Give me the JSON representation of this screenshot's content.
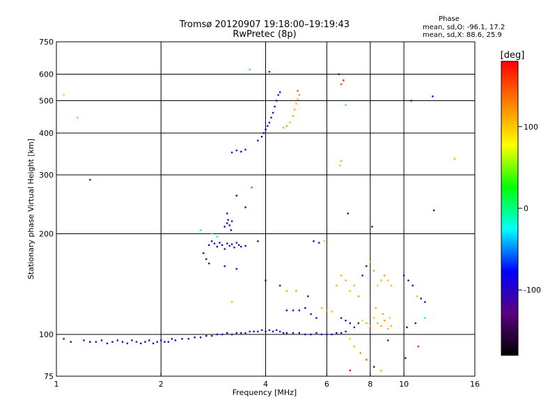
{
  "chart_data": {
    "type": "scatter",
    "title": "Tromsø 20120907 19:18:00–19:19:43",
    "subtitle": "RwPretec (8p)",
    "xlabel": "Frequency [MHz]",
    "ylabel": "Stationary phase Virtual Height [km]",
    "x_scale": "log",
    "y_scale": "log",
    "xlim": [
      1,
      16
    ],
    "ylim": [
      75,
      750
    ],
    "x_ticks": [
      1,
      2,
      4,
      6,
      8,
      10,
      16
    ],
    "x_tick_labels": [
      "1",
      "2",
      "4",
      "6",
      "8",
      "10",
      "16"
    ],
    "y_ticks": [
      75,
      100,
      200,
      300,
      400,
      500,
      600,
      750
    ],
    "y_tick_labels": [
      "75",
      "100",
      "200",
      "300",
      "400",
      "500",
      "600",
      "750"
    ],
    "x_gridlines": [
      2,
      4,
      6,
      8,
      10
    ],
    "y_gridlines": [
      100,
      200,
      300,
      400,
      500,
      600
    ],
    "grid": true,
    "phase_box": {
      "title": "Phase",
      "line1": "mean, sd,O: -96.1, 17.2",
      "line2": "mean, sd,X:  88.6, 25.9"
    },
    "colorbar": {
      "label": "[deg]",
      "ticks": [
        100,
        0,
        -100
      ],
      "tick_labels": [
        "100",
        "0",
        "-100"
      ],
      "range": [
        -180,
        180
      ],
      "colors": [
        "#000000",
        "#5a0080",
        "#0000ff",
        "#00ffff",
        "#00ff00",
        "#ffff00",
        "#ff8000",
        "#ff0000"
      ]
    },
    "series": [
      {
        "name": "",
        "points": [
          [
            1.05,
            97,
            -110
          ],
          [
            1.1,
            95,
            -100
          ],
          [
            1.2,
            96,
            -105
          ],
          [
            1.25,
            95,
            -95
          ],
          [
            1.3,
            95,
            -110
          ],
          [
            1.35,
            96,
            -100
          ],
          [
            1.4,
            94,
            -105
          ],
          [
            1.45,
            95,
            -95
          ],
          [
            1.5,
            96,
            -110
          ],
          [
            1.55,
            95,
            -100
          ],
          [
            1.6,
            94,
            -105
          ],
          [
            1.65,
            96,
            -95
          ],
          [
            1.7,
            95,
            -110
          ],
          [
            1.75,
            94,
            -100
          ],
          [
            1.8,
            95,
            -105
          ],
          [
            1.85,
            96,
            -95
          ],
          [
            1.9,
            94,
            -110
          ],
          [
            1.95,
            95,
            -100
          ],
          [
            2.0,
            96,
            -105
          ],
          [
            2.05,
            95,
            -95
          ],
          [
            2.1,
            95,
            -110
          ],
          [
            2.15,
            97,
            -100
          ],
          [
            2.2,
            96,
            -105
          ],
          [
            2.3,
            97,
            -95
          ],
          [
            2.4,
            97,
            -110
          ],
          [
            2.5,
            98,
            -100
          ],
          [
            2.6,
            98,
            -105
          ],
          [
            2.7,
            99,
            -95
          ],
          [
            2.8,
            99,
            -110
          ],
          [
            2.9,
            100,
            -100
          ],
          [
            3.0,
            100,
            -105
          ],
          [
            3.1,
            101,
            -95
          ],
          [
            3.2,
            100,
            -110
          ],
          [
            3.3,
            101,
            -100
          ],
          [
            3.4,
            101,
            -105
          ],
          [
            3.5,
            101,
            -95
          ],
          [
            3.6,
            102,
            -110
          ],
          [
            3.7,
            102,
            -100
          ],
          [
            3.8,
            102,
            -105
          ],
          [
            3.9,
            103,
            -95
          ],
          [
            4.0,
            102,
            -110
          ],
          [
            4.1,
            103,
            -100
          ],
          [
            4.2,
            102,
            -105
          ],
          [
            4.3,
            103,
            -95
          ],
          [
            4.4,
            102,
            -110
          ],
          [
            4.5,
            101,
            -100
          ],
          [
            4.6,
            101,
            -105
          ],
          [
            4.8,
            101,
            -95
          ],
          [
            5.0,
            101,
            -110
          ],
          [
            5.2,
            100,
            -100
          ],
          [
            5.4,
            100,
            -105
          ],
          [
            5.6,
            101,
            -95
          ],
          [
            5.8,
            100,
            -110
          ],
          [
            6.0,
            100,
            -100
          ],
          [
            6.2,
            100,
            -105
          ],
          [
            6.4,
            101,
            -95
          ],
          [
            6.6,
            101,
            -110
          ],
          [
            6.8,
            102,
            -100
          ],
          [
            2.75,
            185,
            -105
          ],
          [
            2.8,
            190,
            -95
          ],
          [
            2.85,
            187,
            -110
          ],
          [
            2.9,
            183,
            -100
          ],
          [
            2.95,
            188,
            -105
          ],
          [
            3.0,
            185,
            -95
          ],
          [
            3.05,
            180,
            -110
          ],
          [
            3.1,
            187,
            -100
          ],
          [
            3.15,
            184,
            -105
          ],
          [
            3.2,
            186,
            -95
          ],
          [
            3.25,
            182,
            -110
          ],
          [
            3.3,
            188,
            -100
          ],
          [
            3.35,
            185,
            -105
          ],
          [
            3.4,
            183,
            -95
          ],
          [
            3.5,
            184,
            -110
          ],
          [
            2.65,
            175,
            -100
          ],
          [
            2.7,
            168,
            -105
          ],
          [
            2.75,
            163,
            -95
          ],
          [
            3.05,
            210,
            -110
          ],
          [
            3.1,
            215,
            -100
          ],
          [
            3.12,
            220,
            -105
          ],
          [
            3.15,
            212,
            -95
          ],
          [
            3.18,
            205,
            -110
          ],
          [
            3.2,
            218,
            -100
          ],
          [
            3.1,
            230,
            -105
          ],
          [
            3.05,
            160,
            -95
          ],
          [
            2.8,
            200,
            -20
          ],
          [
            2.9,
            196,
            -10
          ],
          [
            3.3,
            157,
            -110
          ],
          [
            3.2,
            350,
            -105
          ],
          [
            3.3,
            355,
            -95
          ],
          [
            3.4,
            352,
            -110
          ],
          [
            3.5,
            357,
            -100
          ],
          [
            3.8,
            380,
            -105
          ],
          [
            3.9,
            390,
            -95
          ],
          [
            3.95,
            400,
            -110
          ],
          [
            4.0,
            410,
            -100
          ],
          [
            4.05,
            420,
            -105
          ],
          [
            4.1,
            430,
            -95
          ],
          [
            4.15,
            445,
            -110
          ],
          [
            4.2,
            460,
            -100
          ],
          [
            4.25,
            480,
            -105
          ],
          [
            4.3,
            500,
            -95
          ],
          [
            4.35,
            520,
            -110
          ],
          [
            4.4,
            530,
            -100
          ],
          [
            4.5,
            415,
            110
          ],
          [
            4.6,
            420,
            115
          ],
          [
            4.7,
            430,
            105
          ],
          [
            4.8,
            450,
            110
          ],
          [
            4.85,
            470,
            115
          ],
          [
            4.9,
            490,
            105
          ],
          [
            4.95,
            505,
            110
          ],
          [
            5.0,
            520,
            120
          ],
          [
            4.95,
            535,
            150
          ],
          [
            3.6,
            620,
            -5
          ],
          [
            4.1,
            610,
            -110
          ],
          [
            1.05,
            520,
            60
          ],
          [
            1.15,
            445,
            110
          ],
          [
            1.25,
            290,
            -110
          ],
          [
            3.3,
            260,
            -110
          ],
          [
            3.5,
            240,
            -100
          ],
          [
            3.65,
            275,
            150
          ],
          [
            2.6,
            205,
            -10
          ],
          [
            3.8,
            190,
            -110
          ],
          [
            4.0,
            145,
            -100
          ],
          [
            4.4,
            140,
            -105
          ],
          [
            4.6,
            118,
            -95
          ],
          [
            4.8,
            118,
            -110
          ],
          [
            5.0,
            118,
            -100
          ],
          [
            5.2,
            120,
            -105
          ],
          [
            5.4,
            115,
            -95
          ],
          [
            5.6,
            112,
            -110
          ],
          [
            5.8,
            120,
            110
          ],
          [
            6.0,
            118,
            115
          ],
          [
            6.2,
            117,
            105
          ],
          [
            4.6,
            135,
            110
          ],
          [
            4.9,
            135,
            120
          ],
          [
            5.3,
            130,
            -110
          ],
          [
            5.5,
            190,
            -100
          ],
          [
            5.7,
            188,
            -105
          ],
          [
            5.9,
            190,
            100
          ],
          [
            6.5,
            600,
            -110
          ],
          [
            6.6,
            560,
            150
          ],
          [
            6.7,
            575,
            170
          ],
          [
            6.8,
            485,
            -30
          ],
          [
            6.6,
            330,
            110
          ],
          [
            6.55,
            320,
            100
          ],
          [
            6.9,
            230,
            -100
          ],
          [
            8.1,
            210,
            -110
          ],
          [
            6.4,
            140,
            105
          ],
          [
            6.6,
            150,
            110
          ],
          [
            6.8,
            145,
            115
          ],
          [
            7.0,
            135,
            100
          ],
          [
            7.2,
            140,
            110
          ],
          [
            7.4,
            130,
            120
          ],
          [
            7.6,
            150,
            -110
          ],
          [
            7.8,
            160,
            -100
          ],
          [
            8.0,
            165,
            110
          ],
          [
            8.2,
            155,
            115
          ],
          [
            8.4,
            140,
            100
          ],
          [
            8.6,
            145,
            110
          ],
          [
            8.8,
            150,
            120
          ],
          [
            9.0,
            145,
            100
          ],
          [
            9.2,
            140,
            105
          ],
          [
            8.3,
            120,
            110
          ],
          [
            8.7,
            115,
            115
          ],
          [
            9.1,
            112,
            100
          ],
          [
            6.6,
            112,
            -110
          ],
          [
            6.8,
            110,
            -100
          ],
          [
            7.0,
            108,
            -105
          ],
          [
            7.2,
            105,
            -95
          ],
          [
            7.4,
            108,
            -110
          ],
          [
            7.6,
            110,
            60
          ],
          [
            7.8,
            108,
            110
          ],
          [
            8.0,
            106,
            115
          ],
          [
            8.2,
            112,
            105
          ],
          [
            8.4,
            108,
            110
          ],
          [
            8.6,
            106,
            115
          ],
          [
            8.8,
            110,
            120
          ],
          [
            9.0,
            104,
            105
          ],
          [
            9.2,
            106,
            110
          ],
          [
            7.2,
            92,
            110
          ],
          [
            7.5,
            88,
            120
          ],
          [
            7.8,
            84,
            150
          ],
          [
            8.2,
            80,
            -110
          ],
          [
            8.6,
            78,
            110
          ],
          [
            7.0,
            97,
            100
          ],
          [
            10.0,
            150,
            -110
          ],
          [
            10.3,
            145,
            -100
          ],
          [
            10.6,
            140,
            -105
          ],
          [
            10.9,
            130,
            110
          ],
          [
            11.2,
            128,
            -95
          ],
          [
            11.5,
            125,
            -110
          ],
          [
            10.2,
            105,
            -100
          ],
          [
            10.8,
            108,
            -105
          ],
          [
            11.5,
            112,
            -30
          ],
          [
            10.5,
            500,
            -110
          ],
          [
            12.1,
            515,
            -100
          ],
          [
            12.2,
            235,
            -100
          ],
          [
            14.0,
            335,
            110
          ],
          [
            11.0,
            92,
            170
          ],
          [
            10.1,
            85,
            -110
          ],
          [
            7.0,
            78,
            180
          ],
          [
            9.0,
            96,
            -105
          ],
          [
            3.2,
            125,
            50
          ]
        ]
      }
    ]
  }
}
